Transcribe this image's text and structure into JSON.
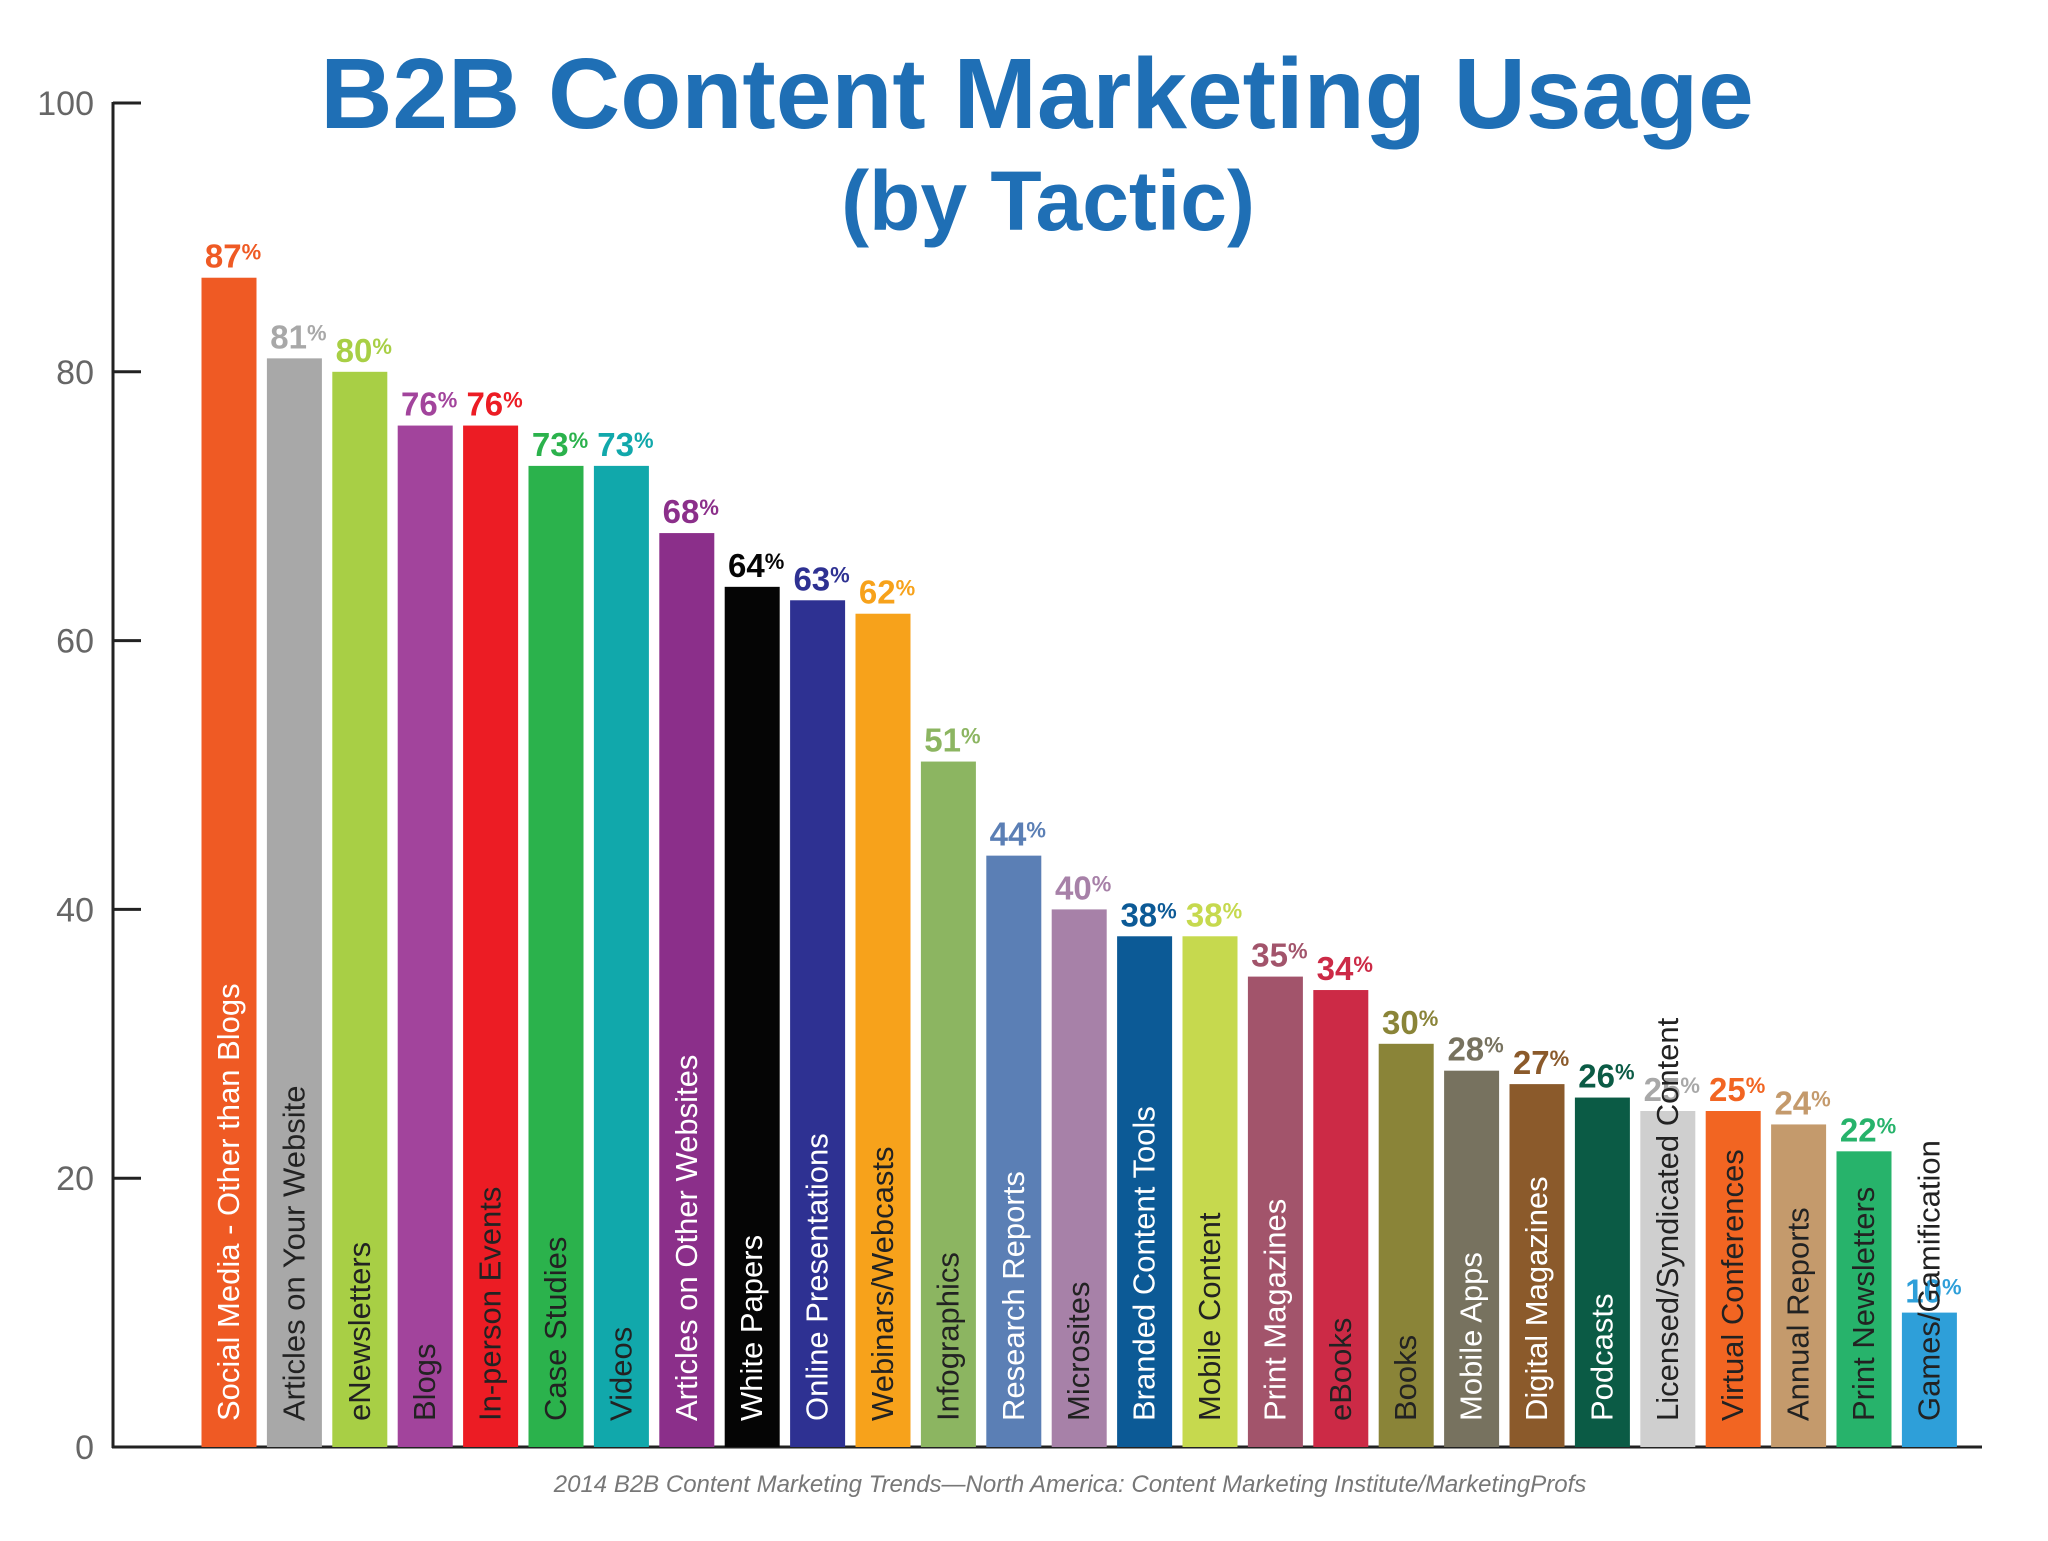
{
  "chart_data": {
    "type": "bar",
    "title": "B2B Content Marketing Usage",
    "subtitle": "(by Tactic)",
    "source": "2014 B2B Content Marketing Trends—North America: Content Marketing Institute/MarketingProfs",
    "value_suffix": "%",
    "ylim": [
      0,
      100
    ],
    "yticks": [
      0,
      20,
      40,
      60,
      80,
      100
    ],
    "grid": false,
    "legend": "none",
    "title_color": "#1f6fb5",
    "bars": [
      {
        "label": "Social Media - Other than Blogs",
        "value": 87,
        "color": "#ef5a24",
        "label_color": "#ffffff"
      },
      {
        "label": "Articles on Your Website",
        "value": 81,
        "color": "#a8a8a8",
        "label_color": "#222222"
      },
      {
        "label": "eNewsletters",
        "value": 80,
        "color": "#a8cf45",
        "label_color": "#222222"
      },
      {
        "label": "Blogs",
        "value": 76,
        "color": "#a2449c",
        "label_color": "#222222"
      },
      {
        "label": "In-person Events",
        "value": 76,
        "color": "#ec1c24",
        "label_color": "#222222"
      },
      {
        "label": "Case Studies",
        "value": 73,
        "color": "#2bb24c",
        "label_color": "#222222"
      },
      {
        "label": "Videos",
        "value": 73,
        "color": "#11a8ab",
        "label_color": "#222222"
      },
      {
        "label": "Articles on Other Websites",
        "value": 68,
        "color": "#8b2f8a",
        "label_color": "#ffffff"
      },
      {
        "label": "White Papers",
        "value": 64,
        "color": "#050505",
        "label_color": "#ffffff"
      },
      {
        "label": "Online Presentations",
        "value": 63,
        "color": "#2e3192",
        "label_color": "#ffffff"
      },
      {
        "label": "Webinars/Webcasts",
        "value": 62,
        "color": "#f7a21b",
        "label_color": "#222222"
      },
      {
        "label": "Infographics",
        "value": 51,
        "color": "#8cb561",
        "label_color": "#222222"
      },
      {
        "label": "Research Reports",
        "value": 44,
        "color": "#5b7fb5",
        "label_color": "#ffffff"
      },
      {
        "label": "Microsites",
        "value": 40,
        "color": "#a781a8",
        "label_color": "#222222"
      },
      {
        "label": "Branded Content Tools",
        "value": 38,
        "color": "#0c5a96",
        "label_color": "#ffffff"
      },
      {
        "label": "Mobile Content",
        "value": 38,
        "color": "#c6d94e",
        "label_color": "#222222"
      },
      {
        "label": "Print Magazines",
        "value": 35,
        "color": "#a2546b",
        "label_color": "#ffffff"
      },
      {
        "label": "eBooks",
        "value": 34,
        "color": "#cc2a46",
        "label_color": "#222222"
      },
      {
        "label": "Books",
        "value": 30,
        "color": "#8a8438",
        "label_color": "#222222"
      },
      {
        "label": "Mobile Apps",
        "value": 28,
        "color": "#77725f",
        "label_color": "#ffffff"
      },
      {
        "label": "Digital Magazines",
        "value": 27,
        "color": "#8b5a2b",
        "label_color": "#ffffff"
      },
      {
        "label": "Podcasts",
        "value": 26,
        "color": "#0b5b45",
        "label_color": "#ffffff"
      },
      {
        "label": "Licensed/Syndicated Content",
        "value": 25,
        "color": "#cfcfcf",
        "label_color": "#222222"
      },
      {
        "label": "Virtual Conferences",
        "value": 25,
        "color": "#f26522",
        "label_color": "#222222"
      },
      {
        "label": "Annual Reports",
        "value": 24,
        "color": "#c49a6c",
        "label_color": "#222222"
      },
      {
        "label": "Print Newsletters",
        "value": 22,
        "color": "#27b36b",
        "label_color": "#222222"
      },
      {
        "label": "Games/Gamification",
        "value": 10,
        "color": "#2e9fd9",
        "label_color": "#222222"
      }
    ],
    "value_label_colors": [
      "#ef5a24",
      "#a8a8a8",
      "#a8cf45",
      "#a2449c",
      "#ec1c24",
      "#2bb24c",
      "#11a8ab",
      "#8b2f8a",
      "#050505",
      "#2e3192",
      "#f7a21b",
      "#8cb561",
      "#5b7fb5",
      "#a781a8",
      "#0c5a96",
      "#c6d94e",
      "#a2546b",
      "#cc2a46",
      "#8a8438",
      "#77725f",
      "#8b5a2b",
      "#0b5b45",
      "#a8a8a8",
      "#f26522",
      "#c49a6c",
      "#27b36b",
      "#2e9fd9"
    ]
  }
}
